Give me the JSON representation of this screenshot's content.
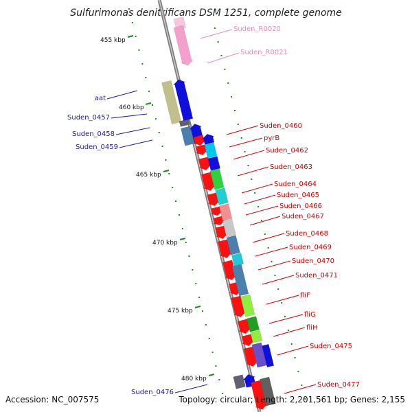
{
  "title": "Sulfurimonas denitrificans DSM 1251, complete genome",
  "footer": {
    "accession": "Accession: NC_007575",
    "summary": "Topology: circular; Length: 2,201,561 bp; Genes: 2,155"
  },
  "colors": {
    "backbone": "#8a8a8a",
    "tick": "#1a8a1a",
    "label_blue": "#1a1aaa",
    "label_red": "#cc0000",
    "label_pink": "#e88ac0"
  },
  "kbp_markers": [
    "455 kbp",
    "460 kbp",
    "465 kbp",
    "470 kbp",
    "475 kbp",
    "480 kbp"
  ],
  "gene_labels_left": [
    "aat",
    "Suden_0457",
    "Suden_0458",
    "Suden_0459",
    "Suden_0476"
  ],
  "gene_labels_right_pink": [
    "Suden_R0020",
    "Suden_R0021"
  ],
  "gene_labels_right_red": [
    "Suden_0460",
    "pyrB",
    "Suden_0462",
    "Suden_0463",
    "Suden_0464",
    "Suden_0465",
    "Suden_0466",
    "Suden_0467",
    "Suden_0468",
    "Suden_0469",
    "Suden_0470",
    "Suden_0471",
    "fliF",
    "fliG",
    "fliH",
    "Suden_0475",
    "Suden_0477"
  ]
}
